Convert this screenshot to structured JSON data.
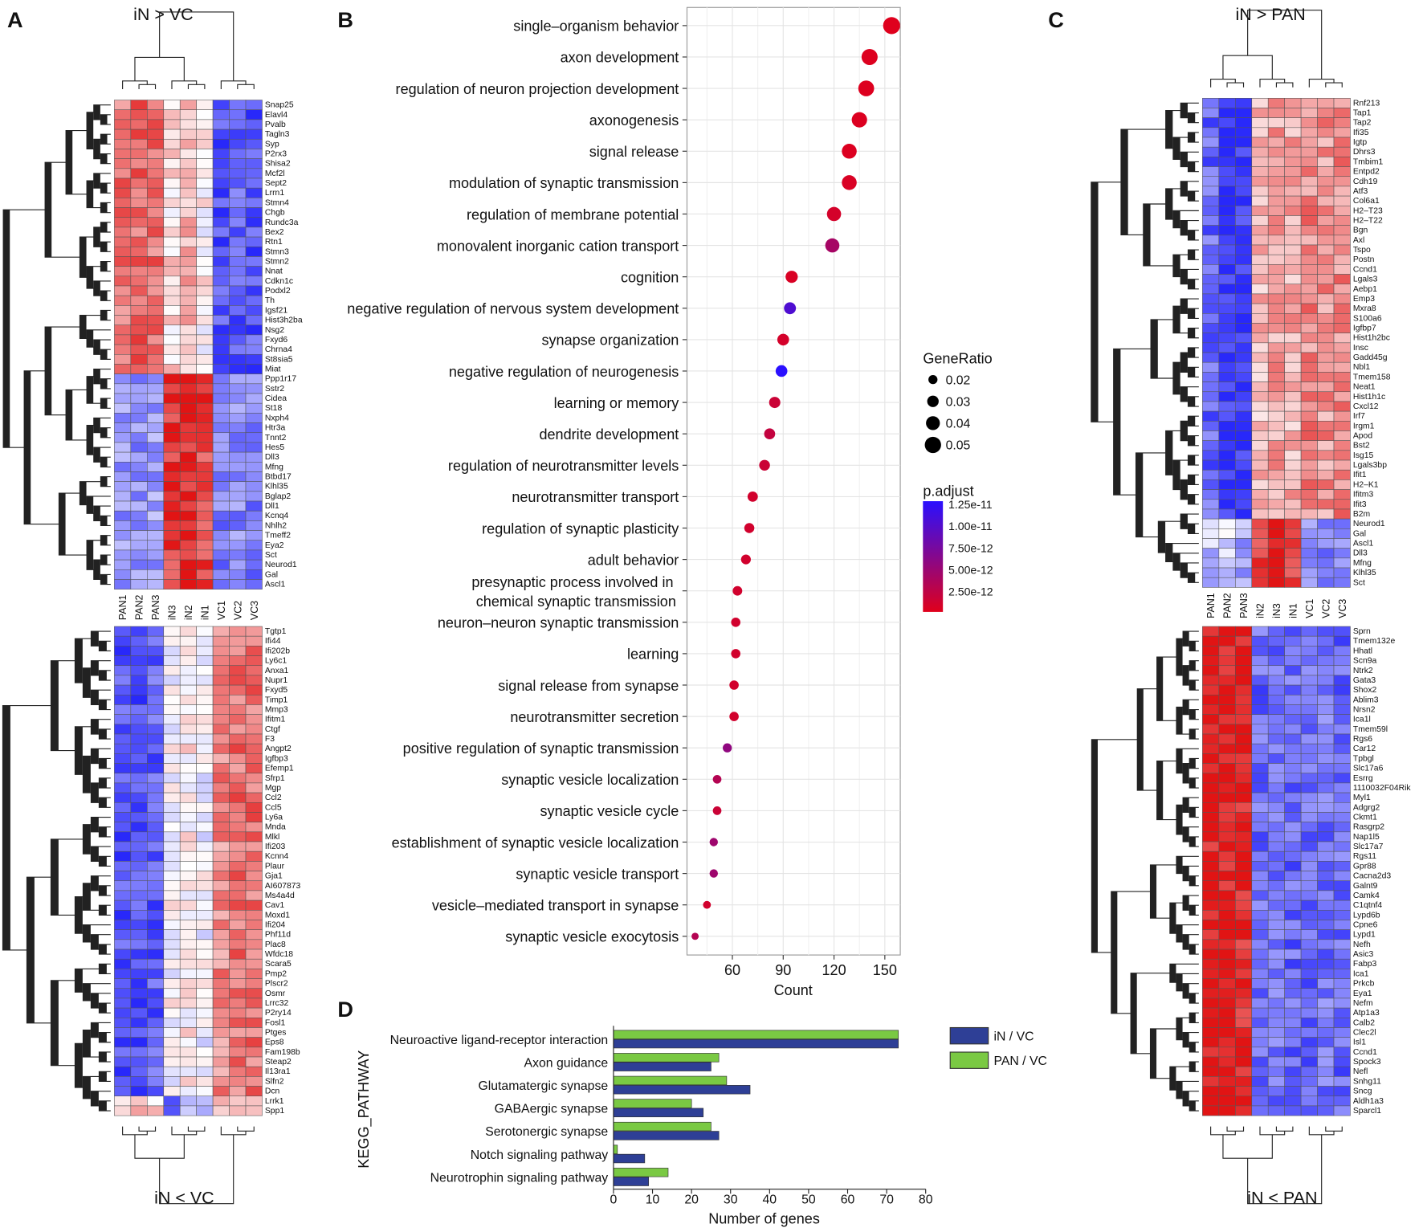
{
  "panels": {
    "a": "A",
    "b": "B",
    "c": "C",
    "d": "D"
  },
  "chart_data": [
    {
      "id": "A",
      "type": "heatmap",
      "title_top": "iN > VC",
      "title_bottom": "iN < VC",
      "columns": [
        "PAN1",
        "PAN2",
        "PAN3",
        "iN3",
        "iN2",
        "iN1",
        "VC1",
        "VC2",
        "VC3"
      ],
      "patterns": {
        "p1": [
          0.6,
          0.65,
          0.6,
          0.15,
          0.3,
          0.05,
          -0.8,
          -0.75,
          -0.8
        ],
        "p2": [
          -0.5,
          -0.5,
          -0.45,
          0.85,
          0.95,
          0.8,
          -0.6,
          -0.55,
          -0.6
        ],
        "p3": [
          -0.8,
          -0.8,
          -0.75,
          0.0,
          0.1,
          -0.05,
          0.5,
          0.6,
          0.6
        ],
        "p4": [
          0.2,
          0.2,
          0.2,
          -1.0,
          -0.4,
          -0.2,
          0.3,
          0.3,
          0.25
        ]
      },
      "top": {
        "genes": [
          "Snap25",
          "Elavl4",
          "Pvalb",
          "Tagln3",
          "Syp",
          "P2rx3",
          "Shisa2",
          "Mcf2l",
          "Sept2",
          "Lrrn1",
          "Stmn4",
          "Chgb",
          "Rundc3a",
          "Bex2",
          "Rtn1",
          "Stmn3",
          "Stmn2",
          "Nnat",
          "Cdkn1c",
          "Podxl2",
          "Th",
          "Igsf21",
          "Hist3h2ba",
          "Nsg2",
          "Fxyd6",
          "Chrna4",
          "St8sia5",
          "Miat",
          "Ppp1r17",
          "Sstr2",
          "Cidea",
          "St18",
          "Nxph4",
          "Htr3a",
          "Tnnt2",
          "Hes5",
          "Dll3",
          "Mfng",
          "Btbd17",
          "Klhl35",
          "Bglap2",
          "Dll1",
          "Kcnq4",
          "Nhlh2",
          "Tmeff2",
          "Eya2",
          "Sct",
          "Neurod1",
          "Gal",
          "Ascl1"
        ],
        "blocks": [
          {
            "pattern": "p1",
            "count": 28
          },
          {
            "pattern": "p2",
            "count": 22
          }
        ]
      },
      "bottom": {
        "genes": [
          "Tgtp1",
          "Ifi44",
          "Ifi202b",
          "Ly6c1",
          "Anxa1",
          "Nupr1",
          "Fxyd5",
          "Timp1",
          "Mmp3",
          "Ifitm1",
          "Ctgf",
          "F3",
          "Angpt2",
          "Igfbp3",
          "Efemp1",
          "Sfrp1",
          "Mgp",
          "Ccl2",
          "Ccl5",
          "Ly6a",
          "Mnda",
          "Mlkl",
          "Ifi203",
          "Kcnn4",
          "Plaur",
          "Gja1",
          "AI607873",
          "Ms4a4d",
          "Cav1",
          "Moxd1",
          "Ifi204",
          "Phf11d",
          "Plac8",
          "Wfdc18",
          "Scara5",
          "Pmp2",
          "Plscr2",
          "Osmr",
          "Lrrc32",
          "P2ry14",
          "Fosl1",
          "Ptges",
          "Eps8",
          "Fam198b",
          "Steap2",
          "Il13ra1",
          "Slfn2",
          "Dcn",
          "Lrrk1",
          "Spp1"
        ],
        "blocks": [
          {
            "pattern": "p3",
            "count": 48
          },
          {
            "pattern": "p4",
            "count": 2
          }
        ]
      }
    },
    {
      "id": "B",
      "type": "scatter",
      "xlabel": "Count",
      "xticks": [
        60,
        90,
        120,
        150
      ],
      "xlim": [
        33,
        158
      ],
      "grid": true,
      "size_legend": {
        "title": "GeneRatio",
        "values": [
          0.02,
          0.03,
          0.04,
          0.05
        ],
        "labels": [
          "0.02",
          "0.03",
          "0.04",
          "0.05"
        ]
      },
      "color_legend": {
        "title": "p.adjust",
        "range": [
          0,
          1.25e-11
        ],
        "labels": [
          "1.25e-11",
          "1.00e-11",
          "7.50e-12",
          "5.00e-12",
          "2.50e-12"
        ],
        "low_color": "#e0001b",
        "high_color": "#2a10ff"
      },
      "points": [
        {
          "term": "single–organism behavior",
          "count": 154,
          "gene_ratio": 0.053,
          "p_adjust": 1e-13
        },
        {
          "term": "axon development",
          "count": 141,
          "gene_ratio": 0.049,
          "p_adjust": 2e-13
        },
        {
          "term": "regulation of neuron projection development",
          "count": 139,
          "gene_ratio": 0.048,
          "p_adjust": 2e-13
        },
        {
          "term": "axonogenesis",
          "count": 135,
          "gene_ratio": 0.046,
          "p_adjust": 3e-13
        },
        {
          "term": "signal release",
          "count": 129,
          "gene_ratio": 0.044,
          "p_adjust": 3e-13
        },
        {
          "term": "modulation of synaptic transmission",
          "count": 129,
          "gene_ratio": 0.044,
          "p_adjust": 5e-13
        },
        {
          "term": "regulation of membrane potential",
          "count": 120,
          "gene_ratio": 0.041,
          "p_adjust": 8e-13
        },
        {
          "term": "monovalent inorganic cation transport",
          "count": 119,
          "gene_ratio": 0.041,
          "p_adjust": 4e-12
        },
        {
          "term": "cognition",
          "count": 95,
          "gene_ratio": 0.033,
          "p_adjust": 5e-13
        },
        {
          "term": "negative regulation of nervous system development",
          "count": 94,
          "gene_ratio": 0.032,
          "p_adjust": 1e-11
        },
        {
          "term": "synapse organization",
          "count": 90,
          "gene_ratio": 0.031,
          "p_adjust": 8e-13
        },
        {
          "term": "negative regulation of neurogenesis",
          "count": 89,
          "gene_ratio": 0.031,
          "p_adjust": 1.25e-11
        },
        {
          "term": "learning or memory",
          "count": 85,
          "gene_ratio": 0.029,
          "p_adjust": 1.5e-12
        },
        {
          "term": "dendrite development",
          "count": 82,
          "gene_ratio": 0.028,
          "p_adjust": 2e-12
        },
        {
          "term": "regulation of neurotransmitter levels",
          "count": 79,
          "gene_ratio": 0.027,
          "p_adjust": 1.5e-12
        },
        {
          "term": "neurotransmitter transport",
          "count": 72,
          "gene_ratio": 0.025,
          "p_adjust": 1e-12
        },
        {
          "term": "regulation of synaptic plasticity",
          "count": 70,
          "gene_ratio": 0.024,
          "p_adjust": 1e-12
        },
        {
          "term": "adult behavior",
          "count": 68,
          "gene_ratio": 0.023,
          "p_adjust": 1e-12
        },
        {
          "term": "presynaptic process involved in",
          "term2": "chemical synaptic transmission",
          "count": 63,
          "gene_ratio": 0.022,
          "p_adjust": 1e-12
        },
        {
          "term": "neuron–neuron synaptic transmission",
          "count": 62,
          "gene_ratio": 0.021,
          "p_adjust": 1e-12
        },
        {
          "term": "learning",
          "count": 62,
          "gene_ratio": 0.021,
          "p_adjust": 1e-12
        },
        {
          "term": "signal release from synapse",
          "count": 61,
          "gene_ratio": 0.021,
          "p_adjust": 1e-12
        },
        {
          "term": "neurotransmitter secretion",
          "count": 61,
          "gene_ratio": 0.021,
          "p_adjust": 1e-12
        },
        {
          "term": "positive regulation of synaptic transmission",
          "count": 57,
          "gene_ratio": 0.02,
          "p_adjust": 5.5e-12
        },
        {
          "term": "synaptic vesicle localization",
          "count": 51,
          "gene_ratio": 0.018,
          "p_adjust": 3e-12
        },
        {
          "term": "synaptic vesicle cycle",
          "count": 51,
          "gene_ratio": 0.018,
          "p_adjust": 1.5e-12
        },
        {
          "term": "establishment of synaptic vesicle localization",
          "count": 49,
          "gene_ratio": 0.017,
          "p_adjust": 4.5e-12
        },
        {
          "term": "synaptic vesicle transport",
          "count": 49,
          "gene_ratio": 0.017,
          "p_adjust": 4.5e-12
        },
        {
          "term": "vesicle–mediated transport in synapse",
          "count": 45,
          "gene_ratio": 0.015,
          "p_adjust": 1e-12
        },
        {
          "term": "synaptic vesicle exocytosis",
          "count": 38,
          "gene_ratio": 0.012,
          "p_adjust": 3e-12
        }
      ]
    },
    {
      "id": "C",
      "type": "heatmap",
      "title_top": "iN > PAN",
      "title_bottom": "iN < PAN",
      "columns": [
        "PAN1",
        "PAN2",
        "PAN3",
        "iN2",
        "iN3",
        "iN1",
        "VC1",
        "VC2",
        "VC3"
      ],
      "patterns": {
        "q1": [
          -0.7,
          -0.95,
          -0.95,
          0.3,
          0.4,
          0.35,
          0.5,
          0.45,
          0.5
        ],
        "q2": [
          -0.3,
          -0.2,
          -0.4,
          0.85,
          0.95,
          0.8,
          -0.5,
          -0.55,
          -0.5
        ],
        "q3": [
          1.0,
          1.0,
          0.95,
          -0.7,
          -0.65,
          -0.7,
          -0.7,
          -0.65,
          -0.7
        ]
      },
      "top": {
        "genes": [
          "Rnf213",
          "Tap1",
          "Tap2",
          "Ifi35",
          "Igtp",
          "Dhrs3",
          "Tmbim1",
          "Entpd2",
          "Cdh19",
          "Atf3",
          "Col6a1",
          "H2–T23",
          "H2–T22",
          "Bgn",
          "Axl",
          "Tspo",
          "Postn",
          "Ccnd1",
          "Lgals3",
          "Aebp1",
          "Emp3",
          "Mxra8",
          "S100a6",
          "Igfbp7",
          "Hist1h2bc",
          "Insc",
          "Gadd45g",
          "Nbl1",
          "Tmem158",
          "Neat1",
          "Hist1h1c",
          "Cxcl12",
          "Irf7",
          "Irgm1",
          "Apod",
          "Bst2",
          "Isg15",
          "Lgals3bp",
          "Ifit1",
          "H2–K1",
          "Ifitm3",
          "Ifit3",
          "B2m",
          "Neurod1",
          "Gal",
          "Ascl1",
          "Dll3",
          "Mfng",
          "Klhl35",
          "Sct"
        ],
        "blocks": [
          {
            "pattern": "q1",
            "count": 43
          },
          {
            "pattern": "q2",
            "count": 7
          }
        ]
      },
      "bottom": {
        "genes": [
          "Sprn",
          "Tmem132e",
          "Hhatl",
          "Scn9a",
          "Ntrk2",
          "Gata3",
          "Shox2",
          "Ablim3",
          "Nrsn2",
          "Ica1l",
          "Tmem59l",
          "Rgs6",
          "Car12",
          "Tpbgl",
          "Slc17a6",
          "Esrrg",
          "1110032F04Rik",
          "Myl1",
          "Adgrg2",
          "Ckmt1",
          "Rasgrp2",
          "Nap1l5",
          "Slc17a7",
          "Rgs11",
          "Gpr88",
          "Cacna2d3",
          "Galnt9",
          "Camk4",
          "C1qtnf4",
          "Lypd6b",
          "Cpne6",
          "Lypd1",
          "Nefh",
          "Asic3",
          "Fabp3",
          "Ica1",
          "Prkcb",
          "Eya1",
          "Nefm",
          "Atp1a3",
          "Calb2",
          "Clec2l",
          "Isl1",
          "Ccnd1",
          "Spock3",
          "Nefl",
          "Snhg11",
          "Sncg",
          "Aldh1a3",
          "Sparcl1"
        ],
        "blocks": [
          {
            "pattern": "q3",
            "count": 50
          }
        ]
      }
    },
    {
      "id": "D",
      "type": "bar",
      "orientation": "horizontal",
      "xlabel": "Number of genes",
      "ylabel": "KEGG_PATHWAY",
      "xlim": [
        0,
        80
      ],
      "xticks": [
        0,
        10,
        20,
        30,
        40,
        50,
        60,
        70,
        80
      ],
      "categories": [
        "Neuroactive ligand-receptor interaction",
        "Axon guidance",
        "Glutamatergic synapse",
        "GABAergic synapse",
        "Serotonergic synapse",
        "Notch signaling pathway",
        "Neurotrophin signaling pathway"
      ],
      "series": [
        {
          "name": "PAN / VC",
          "color": "#7ac943",
          "values": [
            73,
            27,
            29,
            20,
            25,
            1,
            14
          ]
        },
        {
          "name": "iN / VC",
          "color": "#2e3f96",
          "values": [
            73,
            25,
            35,
            23,
            27,
            8,
            9
          ]
        }
      ],
      "legend": {
        "position": "right",
        "order": [
          "iN / VC",
          "PAN / VC"
        ]
      }
    }
  ]
}
